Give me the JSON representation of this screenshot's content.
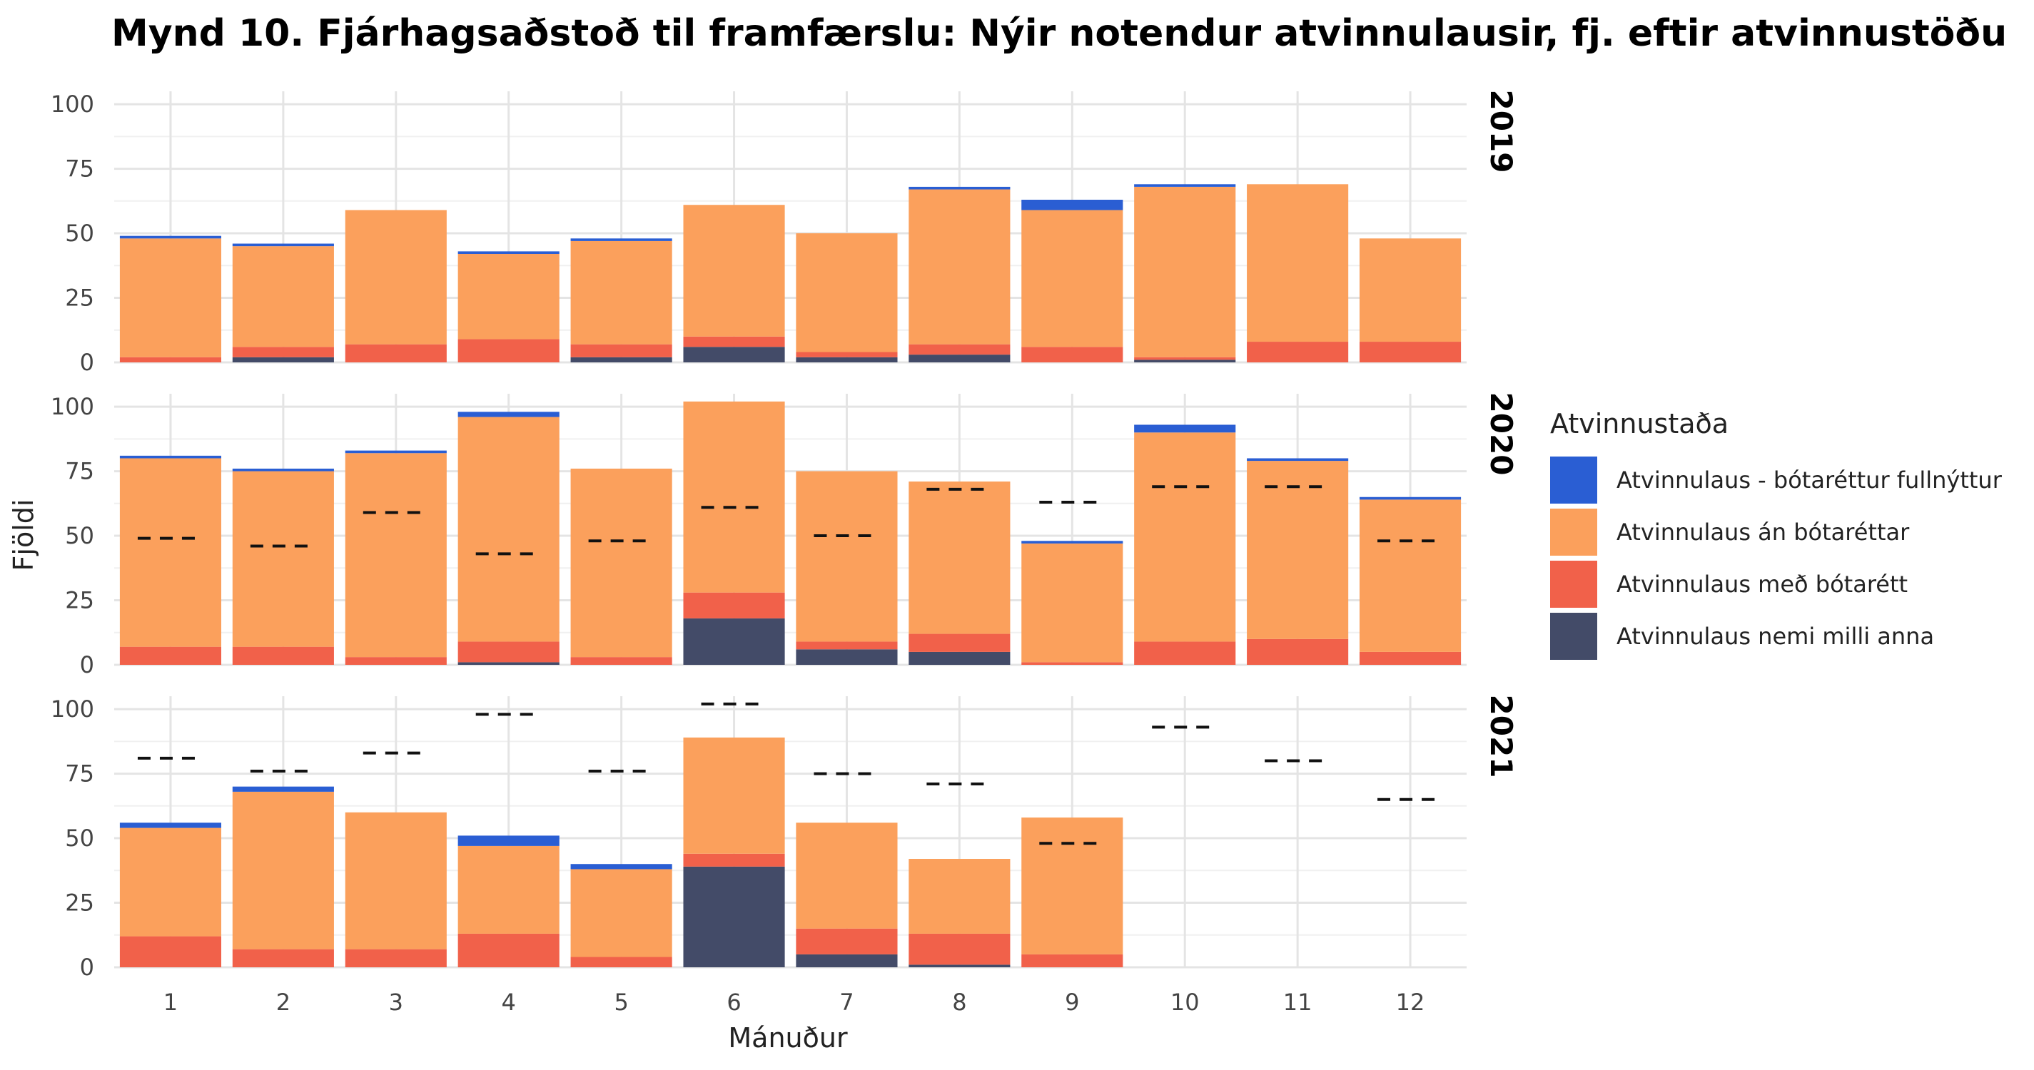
{
  "chart_data": {
    "type": "bar",
    "title": "Mynd 10. Fjárhagsaðstoð til framfærslu: Nýir notendur atvinnulausir, fj. eftir atvinnustöðu",
    "xlabel": "Mánuður",
    "ylabel": "Fjöldi",
    "ylim": [
      0,
      105
    ],
    "yticks": [
      0,
      25,
      50,
      75,
      100
    ],
    "categories": [
      "1",
      "2",
      "3",
      "4",
      "5",
      "6",
      "7",
      "8",
      "9",
      "10",
      "11",
      "12"
    ],
    "grid": true,
    "stacked": true,
    "legend": {
      "title": "Atvinnustaða",
      "placement": "right",
      "entries": [
        {
          "name": "Atvinnulaus - bótaréttur fullnýttur",
          "color": "#2a5ed3"
        },
        {
          "name": "Atvinnulaus án bótaréttar",
          "color": "#fba05c"
        },
        {
          "name": "Atvinnulaus með bótarétt",
          "color": "#f1614a"
        },
        {
          "name": "Atvinnulaus nemi milli anna",
          "color": "#434b68"
        }
      ]
    },
    "stack_order": [
      "Atvinnulaus nemi milli anna",
      "Atvinnulaus með bótarétt",
      "Atvinnulaus án bótaréttar",
      "Atvinnulaus - bótaréttur fullnýttur"
    ],
    "reference_line_note": "dashed marks show previous year's monthly total",
    "panels": [
      {
        "label": "2019",
        "series": [
          {
            "name": "Atvinnulaus nemi milli anna",
            "values": [
              0,
              2,
              0,
              0,
              2,
              6,
              2,
              3,
              0,
              1,
              0,
              0
            ]
          },
          {
            "name": "Atvinnulaus með bótarétt",
            "values": [
              2,
              4,
              7,
              9,
              5,
              4,
              2,
              4,
              6,
              1,
              8,
              8
            ]
          },
          {
            "name": "Atvinnulaus án bótaréttar",
            "values": [
              46,
              39,
              52,
              33,
              40,
              51,
              46,
              60,
              53,
              66,
              61,
              40
            ]
          },
          {
            "name": "Atvinnulaus - bótaréttur fullnýttur",
            "values": [
              1,
              1,
              0,
              1,
              1,
              0,
              0,
              1,
              4,
              1,
              0,
              0
            ]
          }
        ],
        "reference": []
      },
      {
        "label": "2020",
        "series": [
          {
            "name": "Atvinnulaus nemi milli anna",
            "values": [
              0,
              0,
              0,
              1,
              0,
              18,
              6,
              5,
              0,
              0,
              0,
              0
            ]
          },
          {
            "name": "Atvinnulaus með bótarétt",
            "values": [
              7,
              7,
              3,
              8,
              3,
              10,
              3,
              7,
              1,
              9,
              10,
              5
            ]
          },
          {
            "name": "Atvinnulaus án bótaréttar",
            "values": [
              73,
              68,
              79,
              87,
              73,
              74,
              66,
              59,
              46,
              81,
              69,
              59
            ]
          },
          {
            "name": "Atvinnulaus - bótaréttur fullnýttur",
            "values": [
              1,
              1,
              1,
              2,
              0,
              0,
              0,
              0,
              1,
              3,
              1,
              1
            ]
          }
        ],
        "reference": [
          49,
          46,
          59,
          43,
          48,
          61,
          50,
          68,
          63,
          69,
          69,
          48
        ]
      },
      {
        "label": "2021",
        "series": [
          {
            "name": "Atvinnulaus nemi milli anna",
            "values": [
              0,
              0,
              0,
              0,
              0,
              39,
              5,
              1,
              0,
              null,
              null,
              null
            ]
          },
          {
            "name": "Atvinnulaus með bótarétt",
            "values": [
              12,
              7,
              7,
              13,
              4,
              5,
              10,
              12,
              5,
              null,
              null,
              null
            ]
          },
          {
            "name": "Atvinnulaus án bótaréttar",
            "values": [
              42,
              61,
              53,
              34,
              34,
              45,
              41,
              29,
              53,
              null,
              null,
              null
            ]
          },
          {
            "name": "Atvinnulaus - bótaréttur fullnýttur",
            "values": [
              2,
              2,
              0,
              4,
              2,
              0,
              0,
              0,
              0,
              null,
              null,
              null
            ]
          }
        ],
        "reference": [
          81,
          76,
          83,
          98,
          76,
          102,
          75,
          71,
          48,
          93,
          80,
          65
        ]
      }
    ]
  }
}
